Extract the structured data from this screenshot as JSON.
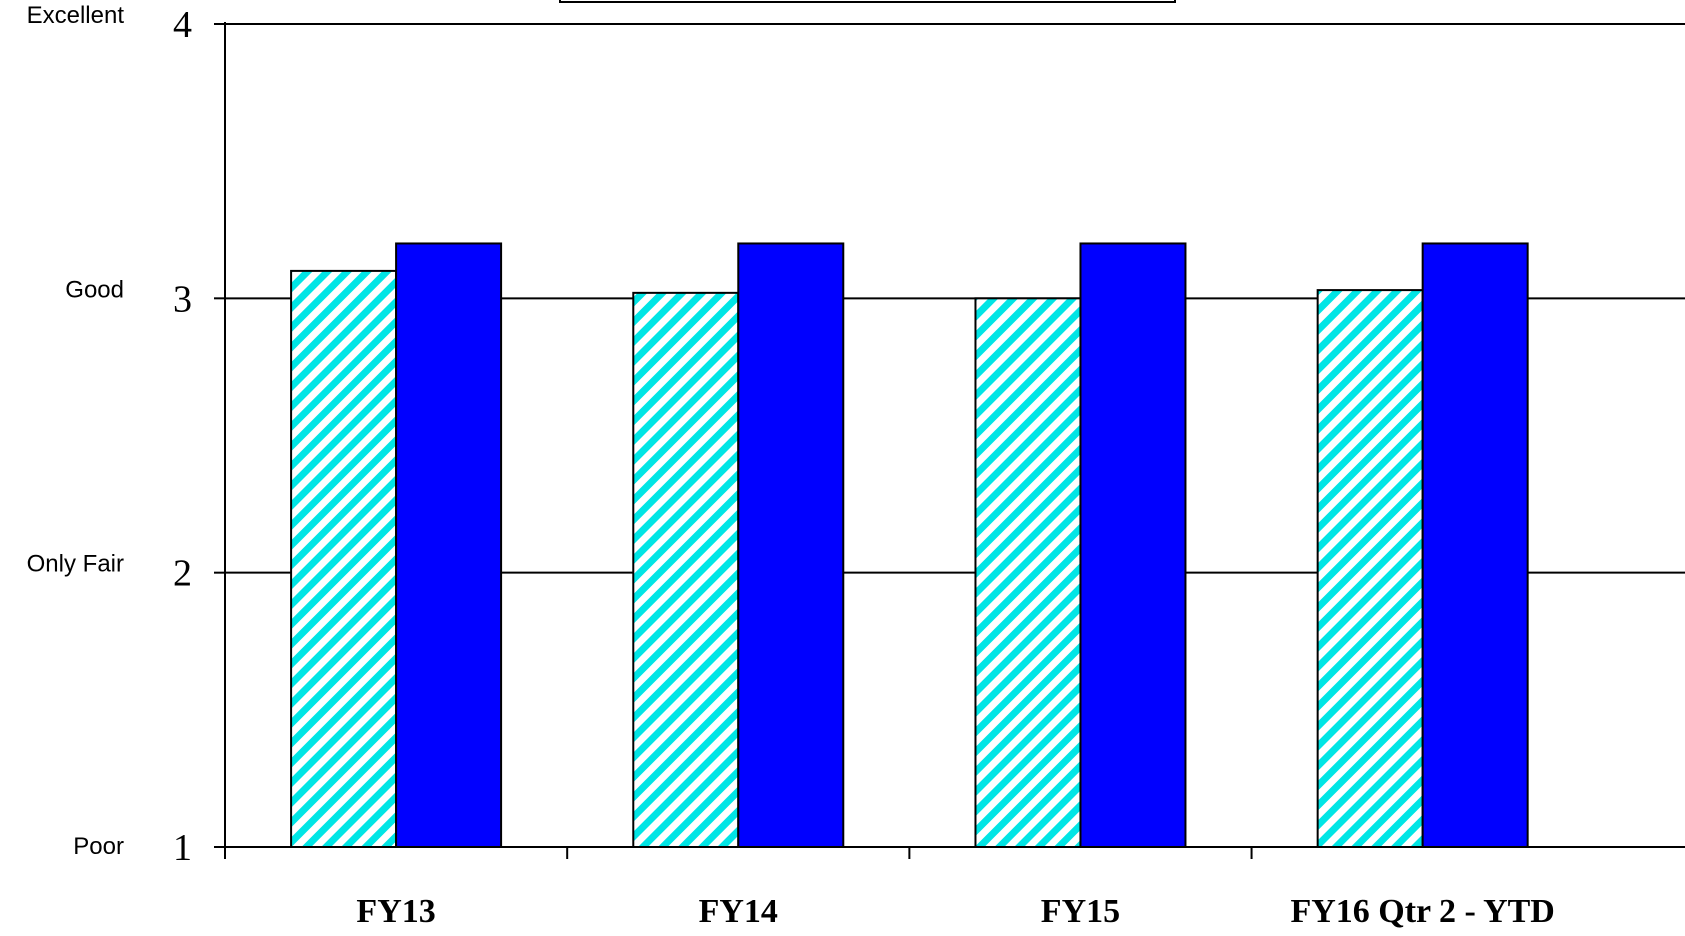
{
  "chart_data": {
    "type": "bar",
    "categories": [
      "FY13",
      "FY14",
      "FY15",
      "FY16 Qtr 2 - YTD"
    ],
    "series": [
      {
        "values": [
          3.1,
          3.02,
          3.0,
          3.03
        ],
        "color": "#00e5e5",
        "fill_style": "diagonal-hatch"
      },
      {
        "values": [
          3.2,
          3.2,
          3.2,
          3.2
        ],
        "color": "#0000ff",
        "fill_style": "solid"
      }
    ],
    "ylim": [
      1,
      4
    ],
    "yticks": [
      1,
      2,
      3,
      4
    ],
    "ytick_labels": [
      "1",
      "2",
      "3",
      "4"
    ],
    "y_qualitative_labels": [
      "Poor",
      "Only Fair",
      "Good",
      "Excellent"
    ],
    "grid": "horizontal",
    "legend": "top-center",
    "title": "",
    "xlabel": "",
    "ylabel": ""
  }
}
